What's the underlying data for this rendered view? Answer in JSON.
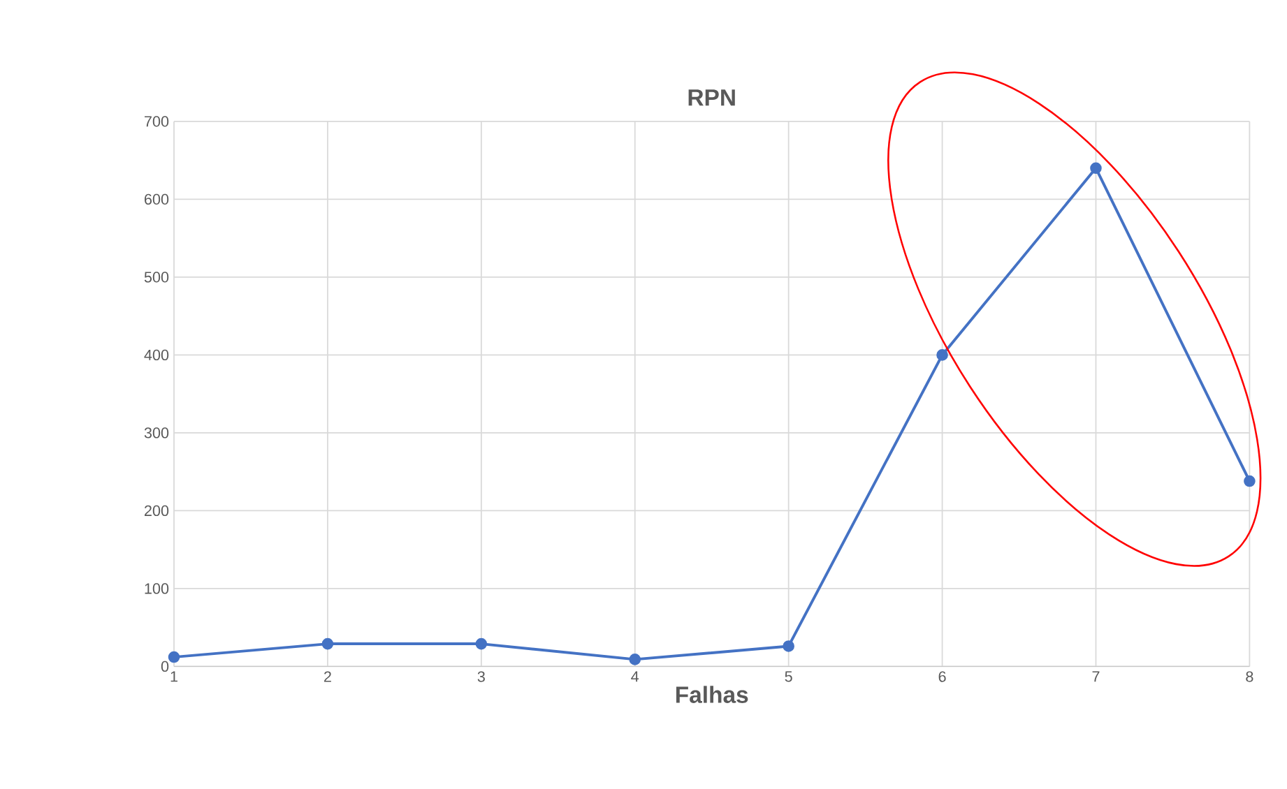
{
  "chart_data": {
    "type": "line",
    "title": "RPN",
    "xlabel": "Falhas",
    "x": [
      1,
      2,
      3,
      4,
      5,
      6,
      7,
      8
    ],
    "series": [
      {
        "color": "#4472c4",
        "values": [
          12,
          29,
          29,
          9,
          26,
          400,
          640,
          238
        ]
      }
    ],
    "xlim": [
      1,
      8
    ],
    "xticks": [
      1,
      2,
      3,
      4,
      5,
      6,
      7,
      8
    ],
    "ylim": [
      0,
      700
    ],
    "yticks": [
      0,
      100,
      200,
      300,
      400,
      500,
      600,
      700
    ],
    "grid": true,
    "marker": "circle",
    "line_style": "solid"
  }
}
